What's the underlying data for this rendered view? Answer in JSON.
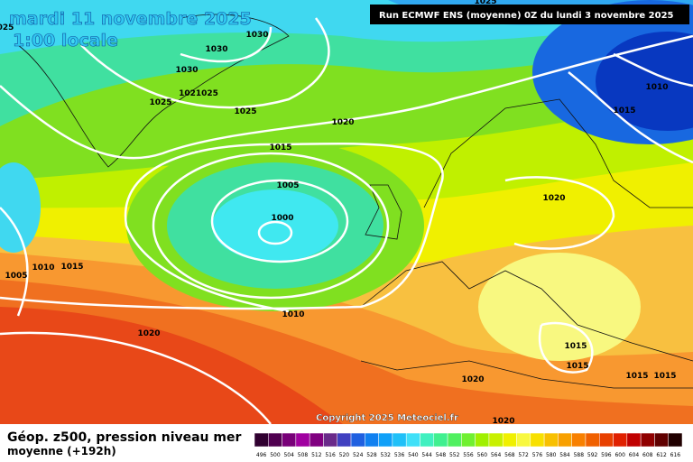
{
  "header": {
    "date": "mardi 11 novembre 2025",
    "time": "1:00 locale",
    "run": "Run ECMWF ENS (moyenne) 0Z du lundi 3 novembre 2025",
    "copyright": "Copyright 2025 Meteociel.fr"
  },
  "isobar_labels": [
    "1025",
    "1030",
    "1030",
    "1030",
    "1025",
    "1021025",
    "1025",
    "1020",
    "1015",
    "1005",
    "1000",
    "1010",
    "1015",
    "1020",
    "1005",
    "1010",
    "1015",
    "1010",
    "1020",
    "1015",
    "1015",
    "1015",
    "1015",
    "1020",
    "1020",
    "025"
  ],
  "legend": {
    "title": "Géop. z500, pression niveau mer",
    "subtitle": "moyenne   (+192h)",
    "ticks": [
      496,
      500,
      504,
      508,
      512,
      516,
      520,
      524,
      528,
      532,
      536,
      540,
      544,
      548,
      552,
      556,
      560,
      564,
      568,
      572,
      576,
      580,
      584,
      588,
      592,
      596,
      600,
      604,
      608,
      612,
      616
    ],
    "colors": [
      "#300030",
      "#500050",
      "#780078",
      "#a000a0",
      "#800080",
      "#6a2a8a",
      "#4040c0",
      "#2060e0",
      "#1080f0",
      "#10a0f8",
      "#20c0f8",
      "#40e0f8",
      "#40f0c0",
      "#40f090",
      "#50f060",
      "#70f030",
      "#a0f000",
      "#c8f000",
      "#f0f000",
      "#f8f840",
      "#f8e000",
      "#f8c000",
      "#f8a000",
      "#f88000",
      "#f06000",
      "#e84000",
      "#e02000",
      "#c00000",
      "#900000",
      "#600000",
      "#200000"
    ]
  }
}
